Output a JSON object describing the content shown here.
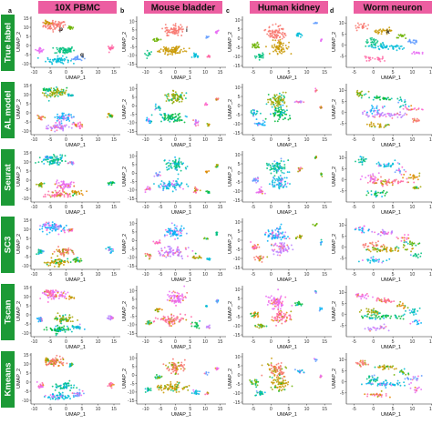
{
  "columns": [
    {
      "letter": "a",
      "title": "10X PBMC"
    },
    {
      "letter": "b",
      "title": "Mouse bladder"
    },
    {
      "letter": "c",
      "title": "Human kidney"
    },
    {
      "letter": "d",
      "title": "Worm neuron"
    }
  ],
  "rows": [
    "True label",
    "AL model",
    "Seurat",
    "SC3",
    "Tscan",
    "Kmeans"
  ],
  "annotations": [
    {
      "panel": "10X PBMC / True label",
      "text": "p"
    },
    {
      "panel": "10X PBMC / True label",
      "text": "q"
    },
    {
      "panel": "Mouse bladder / True label",
      "text": "i"
    },
    {
      "panel": "Worm neuron / True label",
      "text": "k"
    }
  ],
  "colors": {
    "header_bg": "#ec5ea1",
    "row_label_bg": "#1c9a36",
    "cluster_palette": [
      "#f8766d",
      "#e58700",
      "#c99800",
      "#a3a500",
      "#6bb100",
      "#00ba38",
      "#00bf7d",
      "#00c0af",
      "#00bcd8",
      "#00b0f6",
      "#619cff",
      "#b983ff",
      "#e76bf3",
      "#fd61d1",
      "#ff67a4"
    ]
  },
  "chart_data": [
    {
      "type": "scatter",
      "dataset": "10X PBMC",
      "xlabel": "UMAP_1",
      "ylabel": "UMAP_2",
      "xlim": [
        -11,
        17
      ],
      "ylim": [
        -12,
        16
      ],
      "xticks": [
        -10,
        -5,
        0,
        5,
        10,
        15
      ],
      "yticks": [
        -10,
        -5,
        0,
        5,
        10,
        15
      ],
      "clusters": [
        {
          "x": -3.5,
          "y": 11,
          "sx": 3,
          "sy": 2.2,
          "n": 70
        },
        {
          "x": -6,
          "y": 12.5,
          "sx": 1.2,
          "sy": 0.9,
          "n": 18
        },
        {
          "x": 1.5,
          "y": 9.5,
          "sx": 0.8,
          "sy": 0.8,
          "n": 14
        },
        {
          "x": -0.5,
          "y": -2.5,
          "sx": 2.6,
          "sy": 1.8,
          "n": 55
        },
        {
          "x": -2.5,
          "y": -8,
          "sx": 3,
          "sy": 1.6,
          "n": 60
        },
        {
          "x": 3.5,
          "y": -7,
          "sx": 1.4,
          "sy": 1.2,
          "n": 25
        },
        {
          "x": -8,
          "y": -2.5,
          "sx": 0.9,
          "sy": 1.2,
          "n": 18
        },
        {
          "x": 14,
          "y": -1.5,
          "sx": 0.8,
          "sy": 1.1,
          "n": 18
        }
      ]
    },
    {
      "type": "scatter",
      "dataset": "Mouse bladder",
      "xlabel": "UMAP_1",
      "ylabel": "UMAP_2",
      "xlim": [
        -13,
        17
      ],
      "ylim": [
        -17,
        13
      ],
      "xticks": [
        -10,
        -5,
        0,
        5,
        10,
        15
      ],
      "yticks": [
        -15,
        -10,
        -5,
        0,
        5,
        10
      ],
      "clusters": [
        {
          "x": 0,
          "y": 5,
          "sx": 2.6,
          "sy": 3,
          "n": 70
        },
        {
          "x": -1,
          "y": -7,
          "sx": 3.8,
          "sy": 2.2,
          "n": 75
        },
        {
          "x": -6,
          "y": -1,
          "sx": 1,
          "sy": 1,
          "n": 14
        },
        {
          "x": -9,
          "y": -9,
          "sx": 0.8,
          "sy": 1.3,
          "n": 14
        },
        {
          "x": 7,
          "y": -10,
          "sx": 1,
          "sy": 1.5,
          "n": 16
        },
        {
          "x": 10.5,
          "y": 1,
          "sx": 0.6,
          "sy": 0.6,
          "n": 6
        },
        {
          "x": 14,
          "y": 4,
          "sx": 0.4,
          "sy": 1,
          "n": 8
        },
        {
          "x": 11,
          "y": -11,
          "sx": 0.6,
          "sy": 0.8,
          "n": 8
        }
      ]
    },
    {
      "type": "scatter",
      "dataset": "Human kidney",
      "xlabel": "UMAP_1",
      "ylabel": "UMAP_2",
      "xlim": [
        -8,
        17
      ],
      "ylim": [
        -16,
        12
      ],
      "xticks": [
        -5,
        0,
        5,
        10,
        15
      ],
      "yticks": [
        -15,
        -10,
        -5,
        0,
        5,
        10
      ],
      "clusters": [
        {
          "x": 1.5,
          "y": 3,
          "sx": 2.2,
          "sy": 3.2,
          "n": 75
        },
        {
          "x": 2.5,
          "y": -5,
          "sx": 2.2,
          "sy": 3.4,
          "n": 65
        },
        {
          "x": -4.5,
          "y": -4,
          "sx": 1,
          "sy": 1.4,
          "n": 20
        },
        {
          "x": -3,
          "y": -10,
          "sx": 1.3,
          "sy": 1.3,
          "n": 22
        },
        {
          "x": 8,
          "y": 2,
          "sx": 0.9,
          "sy": 1,
          "n": 14
        },
        {
          "x": 12.5,
          "y": 8.5,
          "sx": 0.5,
          "sy": 0.6,
          "n": 6
        },
        {
          "x": 14,
          "y": -1,
          "sx": 0.4,
          "sy": 0.8,
          "n": 6
        }
      ]
    },
    {
      "type": "scatter",
      "dataset": "Worm neuron",
      "xlabel": "UMAP_1",
      "ylabel": "UMAP_2",
      "xlim": [
        -7,
        16
      ],
      "ylim": [
        -10,
        13
      ],
      "xticks": [
        -5,
        0,
        5,
        10,
        15
      ],
      "yticks": [
        -5,
        0,
        5,
        10
      ],
      "clusters": [
        {
          "x": -3,
          "y": 8.5,
          "sx": 1.6,
          "sy": 1.3,
          "n": 22
        },
        {
          "x": 3,
          "y": 6.5,
          "sx": 2.2,
          "sy": 0.9,
          "n": 30
        },
        {
          "x": 7.5,
          "y": 4,
          "sx": 1.2,
          "sy": 1.2,
          "n": 14
        },
        {
          "x": 0,
          "y": 1,
          "sx": 2,
          "sy": 1.4,
          "n": 28
        },
        {
          "x": 3.5,
          "y": -1,
          "sx": 4.5,
          "sy": 1.1,
          "n": 55
        },
        {
          "x": 10,
          "y": 1.5,
          "sx": 1.6,
          "sy": 1,
          "n": 18
        },
        {
          "x": 11,
          "y": -3.5,
          "sx": 1.2,
          "sy": 0.9,
          "n": 12
        },
        {
          "x": 0.5,
          "y": -6,
          "sx": 2.6,
          "sy": 1.2,
          "n": 26
        }
      ]
    }
  ]
}
